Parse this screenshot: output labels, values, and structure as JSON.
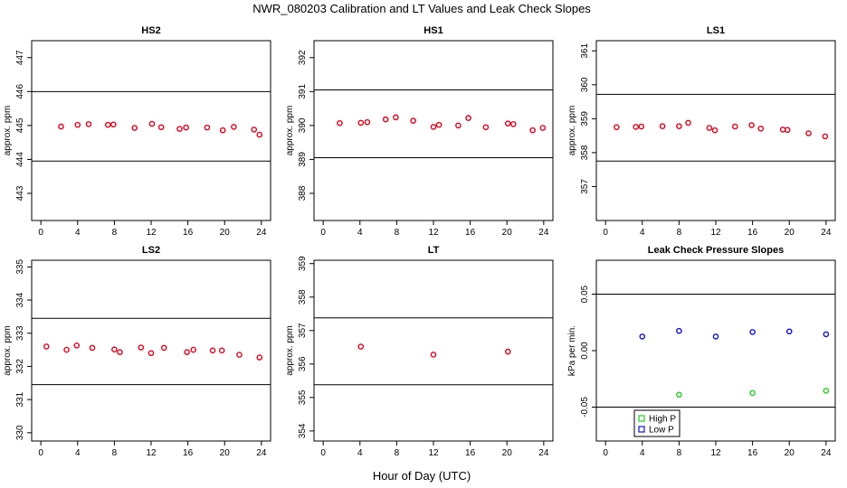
{
  "title": "NWR_080203  Calibration and LT Values and Leak Check Slopes",
  "xlabel": "Hour of Day (UTC)",
  "colors": {
    "red": "#e0001a",
    "green": "#22cc22",
    "blue": "#1010dd",
    "axis": "#000000"
  },
  "chart_data": [
    {
      "id": "hs2",
      "type": "scatter",
      "title": "HS2",
      "ylabel": "approx. ppm",
      "xlim": [
        -1,
        25
      ],
      "ylim": [
        442.2,
        447.5
      ],
      "xticks": [
        0,
        4,
        8,
        12,
        16,
        20,
        24
      ],
      "yticks": [
        443,
        444,
        445,
        446,
        447
      ],
      "hlines": [
        446.0,
        443.95
      ],
      "grid": false,
      "series": [
        {
          "color": "red",
          "x": [
            2.2,
            4.0,
            5.2,
            7.3,
            7.9,
            10.2,
            12.1,
            13.1,
            15.1,
            15.8,
            18.1,
            19.8,
            21.0,
            23.2,
            23.8
          ],
          "y": [
            444.97,
            445.02,
            445.04,
            445.02,
            445.03,
            444.93,
            445.05,
            444.95,
            444.9,
            444.94,
            444.94,
            444.86,
            444.96,
            444.88,
            444.73
          ]
        }
      ]
    },
    {
      "id": "hs1",
      "type": "scatter",
      "title": "HS1",
      "ylabel": "approx. ppm",
      "xlim": [
        -1,
        25
      ],
      "ylim": [
        387.2,
        392.5
      ],
      "xticks": [
        0,
        4,
        8,
        12,
        16,
        20,
        24
      ],
      "yticks": [
        388,
        389,
        390,
        391,
        392
      ],
      "hlines": [
        391.05,
        389.05
      ],
      "grid": false,
      "series": [
        {
          "color": "red",
          "x": [
            1.8,
            4.1,
            4.8,
            6.8,
            7.9,
            9.8,
            12.0,
            12.6,
            14.7,
            15.8,
            17.7,
            20.1,
            20.7,
            22.8,
            23.9
          ],
          "y": [
            390.07,
            390.08,
            390.1,
            390.18,
            390.24,
            390.14,
            389.96,
            390.02,
            390.0,
            390.22,
            389.95,
            390.06,
            390.04,
            389.86,
            389.93
          ]
        }
      ]
    },
    {
      "id": "ls1",
      "type": "scatter",
      "title": "LS1",
      "ylabel": "approx. ppm",
      "xlim": [
        -1,
        25
      ],
      "ylim": [
        356.0,
        361.3
      ],
      "xticks": [
        0,
        4,
        8,
        12,
        16,
        20,
        24
      ],
      "yticks": [
        357,
        358,
        359,
        360,
        361
      ],
      "hlines": [
        359.72,
        357.75
      ],
      "grid": false,
      "series": [
        {
          "color": "red",
          "x": [
            1.2,
            3.3,
            3.9,
            6.2,
            8.0,
            9.0,
            11.3,
            11.9,
            14.1,
            15.9,
            16.9,
            19.3,
            19.8,
            22.1,
            23.9
          ],
          "y": [
            358.75,
            358.76,
            358.77,
            358.78,
            358.78,
            358.88,
            358.73,
            358.66,
            358.77,
            358.81,
            358.71,
            358.68,
            358.67,
            358.57,
            358.48
          ]
        }
      ]
    },
    {
      "id": "ls2",
      "type": "scatter",
      "title": "LS2",
      "ylabel": "approx. ppm",
      "xlim": [
        -1,
        25
      ],
      "ylim": [
        329.75,
        335.2
      ],
      "xticks": [
        0,
        4,
        8,
        12,
        16,
        20,
        24
      ],
      "yticks": [
        330,
        331,
        332,
        333,
        334,
        335
      ],
      "hlines": [
        333.45,
        331.45
      ],
      "grid": false,
      "series": [
        {
          "color": "red",
          "x": [
            0.6,
            2.8,
            3.9,
            5.6,
            8.0,
            8.6,
            10.9,
            12.0,
            13.4,
            15.9,
            16.6,
            18.7,
            19.7,
            21.6,
            23.8
          ],
          "y": [
            332.6,
            332.5,
            332.63,
            332.56,
            332.51,
            332.43,
            332.57,
            332.4,
            332.56,
            332.43,
            332.5,
            332.48,
            332.48,
            332.35,
            332.27
          ]
        }
      ]
    },
    {
      "id": "lt",
      "type": "scatter",
      "title": "LT",
      "ylabel": "approx. ppm",
      "xlim": [
        -1,
        25
      ],
      "ylim": [
        353.7,
        359.1
      ],
      "xticks": [
        0,
        4,
        8,
        12,
        16,
        20,
        24
      ],
      "yticks": [
        354,
        355,
        356,
        357,
        358,
        359
      ],
      "hlines": [
        357.38,
        355.38
      ],
      "grid": false,
      "series": [
        {
          "color": "red",
          "x": [
            4.1,
            12.0,
            20.1
          ],
          "y": [
            356.52,
            356.28,
            356.37
          ]
        }
      ]
    },
    {
      "id": "leak",
      "type": "scatter",
      "title": "Leak Check Pressure Slopes",
      "ylabel": "kPa per min.",
      "xlim": [
        -1,
        25
      ],
      "ylim": [
        -0.08,
        0.08
      ],
      "xticks": [
        0,
        4,
        8,
        12,
        16,
        20,
        24
      ],
      "yticks": [
        -0.05,
        0.0,
        0.05
      ],
      "ytick_labels": [
        "-0.05",
        "0.00",
        "0.05"
      ],
      "hlines": [
        0.05,
        -0.05
      ],
      "grid": false,
      "legend": "bottom-left",
      "series": [
        {
          "name": "High P",
          "color": "green",
          "x": [
            8.0,
            16.0,
            24.0
          ],
          "y": [
            -0.039,
            -0.0375,
            -0.0355
          ]
        },
        {
          "name": "Low P",
          "color": "blue",
          "x": [
            4.0,
            8.0,
            12.0,
            16.0,
            20.0,
            24.0
          ],
          "y": [
            0.0125,
            0.0175,
            0.0125,
            0.0165,
            0.017,
            0.0145
          ]
        }
      ]
    }
  ]
}
